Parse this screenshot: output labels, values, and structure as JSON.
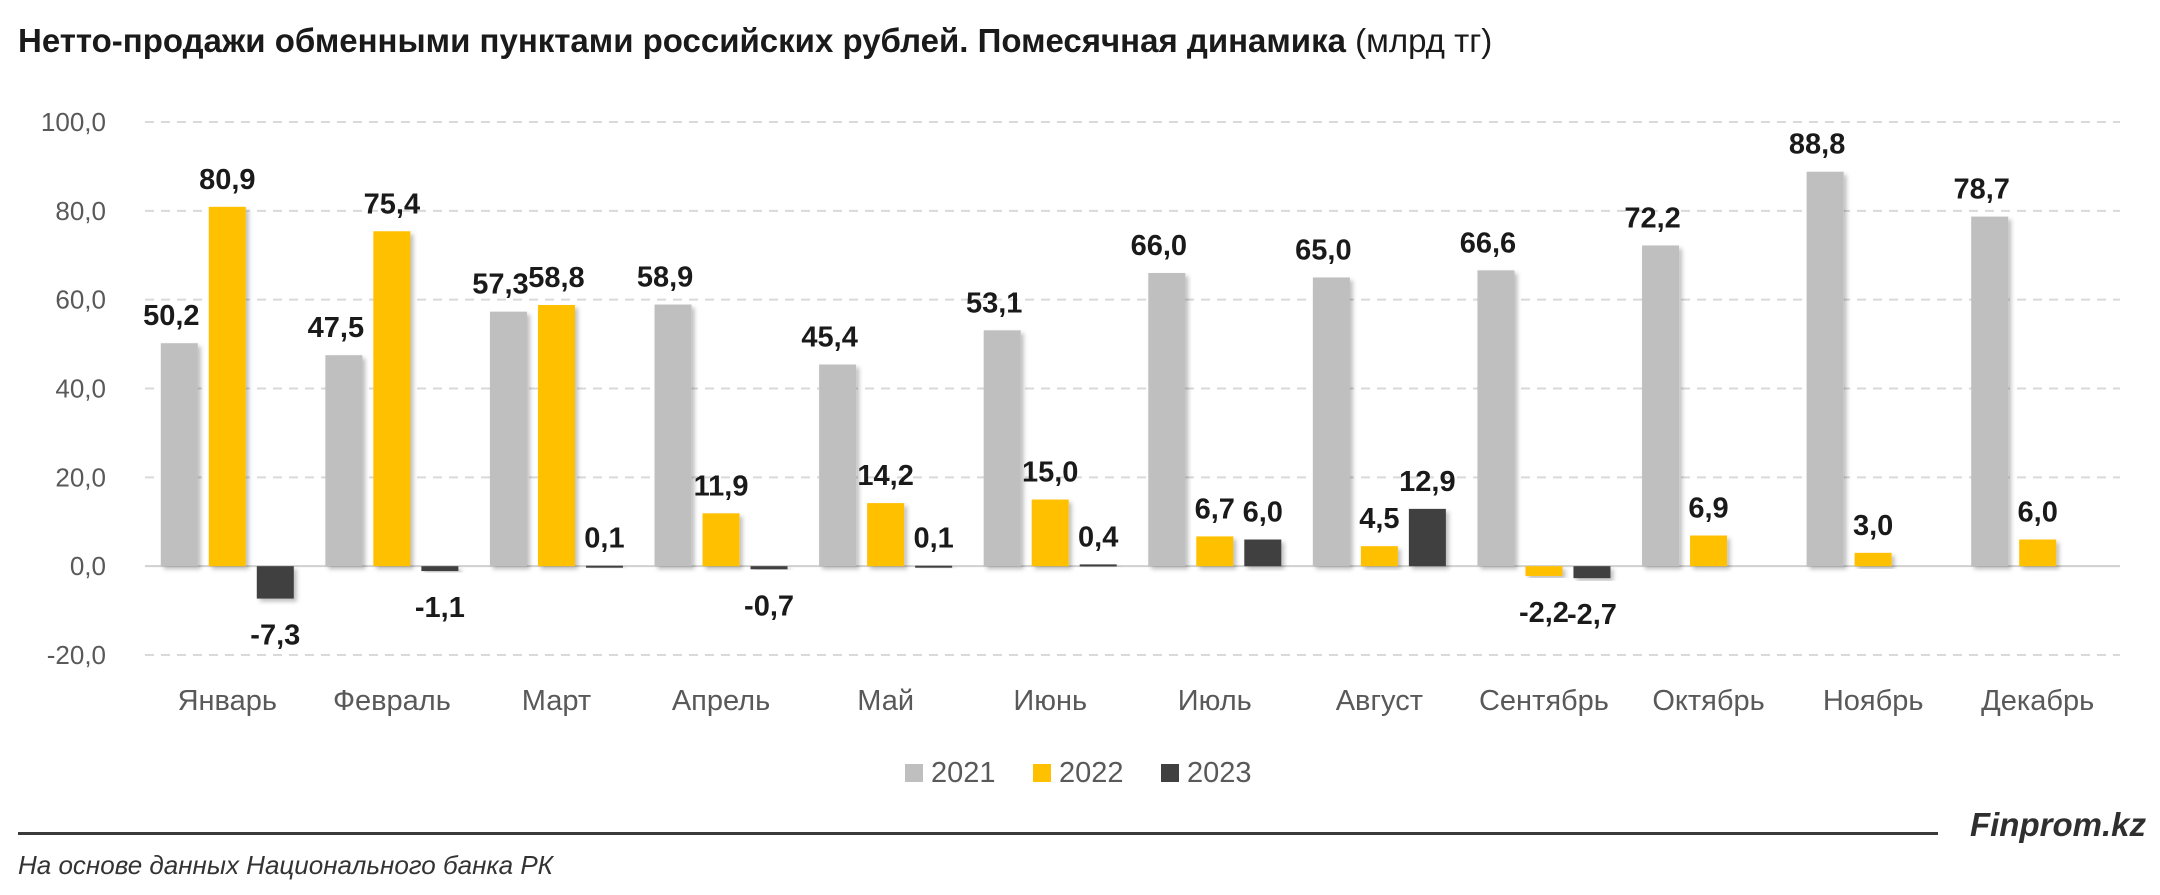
{
  "title": {
    "main": "Нетто-продажи обменными пунктами российских рублей. Помесячная динамика",
    "unit": "(млрд тг)"
  },
  "chart_data": {
    "type": "bar",
    "categories": [
      "Январь",
      "Февраль",
      "Март",
      "Апрель",
      "Май",
      "Июнь",
      "Июль",
      "Август",
      "Сентябрь",
      "Октябрь",
      "Ноябрь",
      "Декабрь"
    ],
    "series": [
      {
        "name": "2021",
        "color": "#bfbfbf",
        "values": [
          50.2,
          47.5,
          57.3,
          58.9,
          45.4,
          53.1,
          66.0,
          65.0,
          66.6,
          72.2,
          88.8,
          78.7
        ]
      },
      {
        "name": "2022",
        "color": "#ffc000",
        "values": [
          80.9,
          75.4,
          58.8,
          11.9,
          14.2,
          15.0,
          6.7,
          4.5,
          -2.2,
          6.9,
          3.0,
          6.0
        ]
      },
      {
        "name": "2023",
        "color": "#404040",
        "values": [
          -7.3,
          -1.1,
          0.1,
          -0.7,
          0.1,
          0.4,
          6.0,
          12.9,
          -2.7,
          null,
          null,
          null
        ]
      }
    ],
    "ylim": [
      -20,
      100
    ],
    "yticks": [
      "-20,0",
      "0,0",
      "20,0",
      "40,0",
      "60,0",
      "80,0",
      "100,0"
    ],
    "grid": true,
    "legend": "bottom"
  },
  "brand": "Finprom.kz",
  "source": "На основе данных Национального банка РК"
}
